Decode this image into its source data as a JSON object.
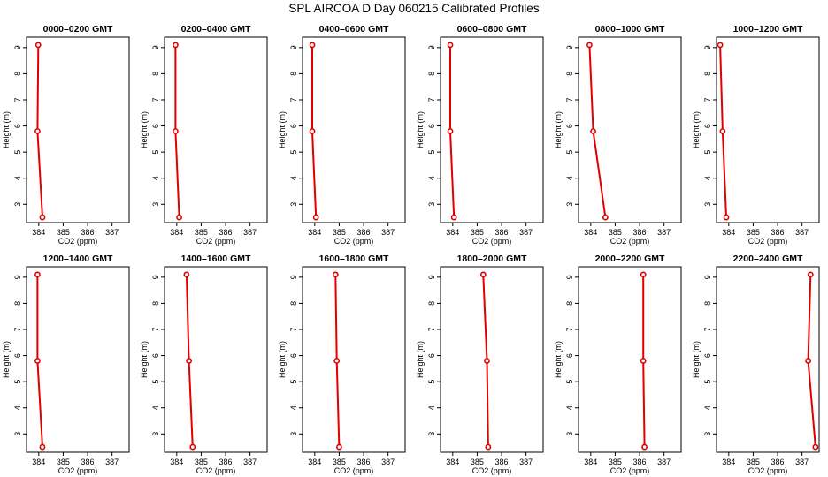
{
  "figure": {
    "title": "SPL AIRCOA D  Day 060215  Calibrated Profiles"
  },
  "style": {
    "line_color": "#e00000",
    "marker_color": "#e00000",
    "axis_color": "#000000"
  },
  "chart_data": [
    {
      "type": "line",
      "title": "0000–0200 GMT",
      "xlabel": "CO2 (ppm)",
      "ylabel": "Height (m)",
      "xlim": [
        383.5,
        387.7
      ],
      "ylim": [
        2.3,
        9.4
      ],
      "xticks": [
        384,
        385,
        386,
        387
      ],
      "yticks": [
        3,
        4,
        5,
        6,
        7,
        8,
        9
      ],
      "series": [
        {
          "x": [
            384.15,
            383.95,
            383.98
          ],
          "y": [
            2.5,
            5.8,
            9.1
          ]
        }
      ]
    },
    {
      "type": "line",
      "title": "0200–0400 GMT",
      "xlabel": "CO2 (ppm)",
      "ylabel": "Height (m)",
      "xlim": [
        383.5,
        387.7
      ],
      "ylim": [
        2.3,
        9.4
      ],
      "xticks": [
        384,
        385,
        386,
        387
      ],
      "yticks": [
        3,
        4,
        5,
        6,
        7,
        8,
        9
      ],
      "series": [
        {
          "x": [
            384.1,
            383.95,
            383.95
          ],
          "y": [
            2.5,
            5.8,
            9.1
          ]
        }
      ]
    },
    {
      "type": "line",
      "title": "0400–0600 GMT",
      "xlabel": "CO2 (ppm)",
      "ylabel": "Height (m)",
      "xlim": [
        383.5,
        387.7
      ],
      "ylim": [
        2.3,
        9.4
      ],
      "xticks": [
        384,
        385,
        386,
        387
      ],
      "yticks": [
        3,
        4,
        5,
        6,
        7,
        8,
        9
      ],
      "series": [
        {
          "x": [
            384.05,
            383.9,
            383.9
          ],
          "y": [
            2.5,
            5.8,
            9.1
          ]
        }
      ]
    },
    {
      "type": "line",
      "title": "0600–0800 GMT",
      "xlabel": "CO2 (ppm)",
      "ylabel": "Height (m)",
      "xlim": [
        383.5,
        387.7
      ],
      "ylim": [
        2.3,
        9.4
      ],
      "xticks": [
        384,
        385,
        386,
        387
      ],
      "yticks": [
        3,
        4,
        5,
        6,
        7,
        8,
        9
      ],
      "series": [
        {
          "x": [
            384.05,
            383.9,
            383.9
          ],
          "y": [
            2.5,
            5.8,
            9.1
          ]
        }
      ]
    },
    {
      "type": "line",
      "title": "0800–1000 GMT",
      "xlabel": "CO2 (ppm)",
      "ylabel": "Height (m)",
      "xlim": [
        383.5,
        387.7
      ],
      "ylim": [
        2.3,
        9.4
      ],
      "xticks": [
        384,
        385,
        386,
        387
      ],
      "yticks": [
        3,
        4,
        5,
        6,
        7,
        8,
        9
      ],
      "series": [
        {
          "x": [
            384.6,
            384.1,
            383.95
          ],
          "y": [
            2.5,
            5.8,
            9.1
          ]
        }
      ]
    },
    {
      "type": "line",
      "title": "1000–1200 GMT",
      "xlabel": "CO2 (ppm)",
      "ylabel": "Height (m)",
      "xlim": [
        383.5,
        387.7
      ],
      "ylim": [
        2.3,
        9.4
      ],
      "xticks": [
        384,
        385,
        386,
        387
      ],
      "yticks": [
        3,
        4,
        5,
        6,
        7,
        8,
        9
      ],
      "series": [
        {
          "x": [
            383.9,
            383.75,
            383.65
          ],
          "y": [
            2.5,
            5.8,
            9.1
          ]
        }
      ]
    },
    {
      "type": "line",
      "title": "1200–1400 GMT",
      "xlabel": "CO2 (ppm)",
      "ylabel": "Height (m)",
      "xlim": [
        383.5,
        387.7
      ],
      "ylim": [
        2.3,
        9.4
      ],
      "xticks": [
        384,
        385,
        386,
        387
      ],
      "yticks": [
        3,
        4,
        5,
        6,
        7,
        8,
        9
      ],
      "series": [
        {
          "x": [
            384.15,
            383.95,
            383.95
          ],
          "y": [
            2.5,
            5.8,
            9.1
          ]
        }
      ]
    },
    {
      "type": "line",
      "title": "1400–1600 GMT",
      "xlabel": "CO2 (ppm)",
      "ylabel": "Height (m)",
      "xlim": [
        383.5,
        387.7
      ],
      "ylim": [
        2.3,
        9.4
      ],
      "xticks": [
        384,
        385,
        386,
        387
      ],
      "yticks": [
        3,
        4,
        5,
        6,
        7,
        8,
        9
      ],
      "series": [
        {
          "x": [
            384.65,
            384.5,
            384.4
          ],
          "y": [
            2.5,
            5.8,
            9.1
          ]
        }
      ]
    },
    {
      "type": "line",
      "title": "1600–1800 GMT",
      "xlabel": "CO2 (ppm)",
      "ylabel": "Height (m)",
      "xlim": [
        383.5,
        387.7
      ],
      "ylim": [
        2.3,
        9.4
      ],
      "xticks": [
        384,
        385,
        386,
        387
      ],
      "yticks": [
        3,
        4,
        5,
        6,
        7,
        8,
        9
      ],
      "series": [
        {
          "x": [
            385.0,
            384.9,
            384.85
          ],
          "y": [
            2.5,
            5.8,
            9.1
          ]
        }
      ]
    },
    {
      "type": "line",
      "title": "1800–2000 GMT",
      "xlabel": "CO2 (ppm)",
      "ylabel": "Height (m)",
      "xlim": [
        383.5,
        387.7
      ],
      "ylim": [
        2.3,
        9.4
      ],
      "xticks": [
        384,
        385,
        386,
        387
      ],
      "yticks": [
        3,
        4,
        5,
        6,
        7,
        8,
        9
      ],
      "series": [
        {
          "x": [
            385.45,
            385.4,
            385.25
          ],
          "y": [
            2.5,
            5.8,
            9.1
          ]
        }
      ]
    },
    {
      "type": "line",
      "title": "2000–2200 GMT",
      "xlabel": "CO2 (ppm)",
      "ylabel": "Height (m)",
      "xlim": [
        383.5,
        387.7
      ],
      "ylim": [
        2.3,
        9.4
      ],
      "xticks": [
        384,
        385,
        386,
        387
      ],
      "yticks": [
        3,
        4,
        5,
        6,
        7,
        8,
        9
      ],
      "series": [
        {
          "x": [
            386.2,
            386.15,
            386.15
          ],
          "y": [
            2.5,
            5.8,
            9.1
          ]
        }
      ]
    },
    {
      "type": "line",
      "title": "2200–2400 GMT",
      "xlabel": "CO2 (ppm)",
      "ylabel": "Height (m)",
      "xlim": [
        383.5,
        387.7
      ],
      "ylim": [
        2.3,
        9.4
      ],
      "xticks": [
        384,
        385,
        386,
        387
      ],
      "yticks": [
        3,
        4,
        5,
        6,
        7,
        8,
        9
      ],
      "series": [
        {
          "x": [
            387.55,
            387.25,
            387.35
          ],
          "y": [
            2.5,
            5.8,
            9.1
          ]
        }
      ]
    }
  ]
}
